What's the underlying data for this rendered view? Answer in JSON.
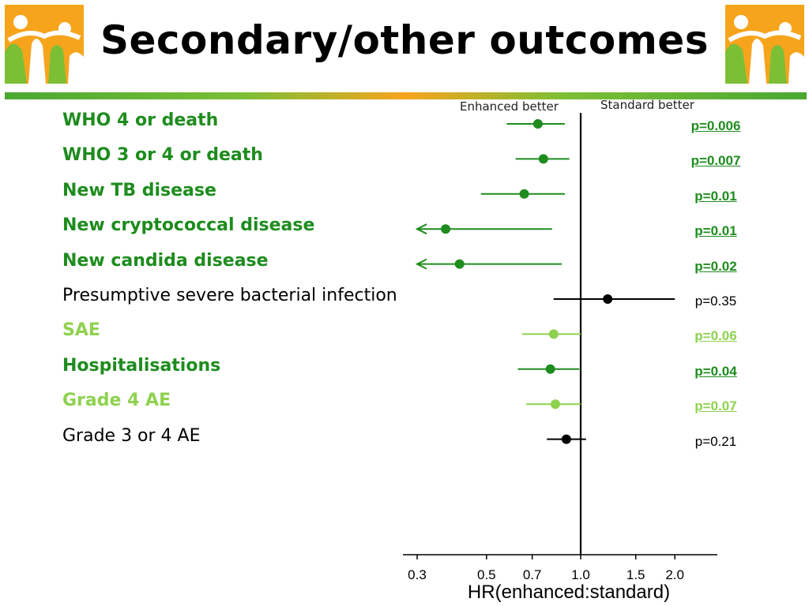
{
  "title": "Secondary/other outcomes",
  "logo_icon": "children-family-logo",
  "colors": {
    "dark_green": "#1e8c1e",
    "light_green": "#8fd14f",
    "black": "#000000",
    "rule_green": "#4aa832",
    "rule_orange": "#f7a41d"
  },
  "chart_data": {
    "type": "forest",
    "direction_labels": {
      "left": "Enhanced better",
      "right": "Standard better"
    },
    "xlabel": "HR(enhanced:standard)",
    "xscale": "log",
    "xlim": [
      0.28,
      2.6
    ],
    "reference_line": 1.0,
    "xticks": [
      0.3,
      0.5,
      0.7,
      1.0,
      1.5,
      2.0
    ],
    "xtick_labels": [
      "0.3",
      "0.5",
      "0.7",
      "1.0",
      "1.5",
      "2.0"
    ],
    "rows": [
      {
        "label": "WHO 4 or death",
        "hr": 0.73,
        "lo": 0.58,
        "hi": 0.89,
        "arrow_left": false,
        "p": "p=0.006",
        "color": "#1e8c1e",
        "significant": true
      },
      {
        "label": "WHO 3 or 4 or death",
        "hr": 0.76,
        "lo": 0.62,
        "hi": 0.92,
        "arrow_left": false,
        "p": "p=0.007",
        "color": "#1e8c1e",
        "significant": true
      },
      {
        "label": "New TB disease",
        "hr": 0.66,
        "lo": 0.48,
        "hi": 0.89,
        "arrow_left": false,
        "p": "p=0.01",
        "color": "#1e8c1e",
        "significant": true
      },
      {
        "label": "New cryptococcal disease",
        "hr": 0.37,
        "lo": 0.3,
        "hi": 0.81,
        "arrow_left": true,
        "p": "p=0.01",
        "color": "#1e8c1e",
        "significant": true
      },
      {
        "label": "New candida disease",
        "hr": 0.41,
        "lo": 0.3,
        "hi": 0.87,
        "arrow_left": true,
        "p": "p=0.02",
        "color": "#1e8c1e",
        "significant": true
      },
      {
        "label": "Presumptive severe bacterial infection",
        "hr": 1.22,
        "lo": 0.82,
        "hi": 2.0,
        "arrow_left": false,
        "p": "p=0.35",
        "color": "#000000",
        "significant": false
      },
      {
        "label": "SAE",
        "hr": 0.82,
        "lo": 0.65,
        "hi": 1.0,
        "arrow_left": false,
        "p": "p=0.06",
        "color": "#8fd14f",
        "significant": true
      },
      {
        "label": "Hospitalisations",
        "hr": 0.8,
        "lo": 0.63,
        "hi": 0.99,
        "arrow_left": false,
        "p": "p=0.04",
        "color": "#1e8c1e",
        "significant": true
      },
      {
        "label": "Grade 4 AE",
        "hr": 0.83,
        "lo": 0.67,
        "hi": 1.0,
        "arrow_left": false,
        "p": "p=0.07",
        "color": "#8fd14f",
        "significant": true
      },
      {
        "label": "Grade 3 or 4 AE",
        "hr": 0.9,
        "lo": 0.78,
        "hi": 1.04,
        "arrow_left": false,
        "p": "p=0.21",
        "color": "#000000",
        "significant": false
      }
    ]
  }
}
